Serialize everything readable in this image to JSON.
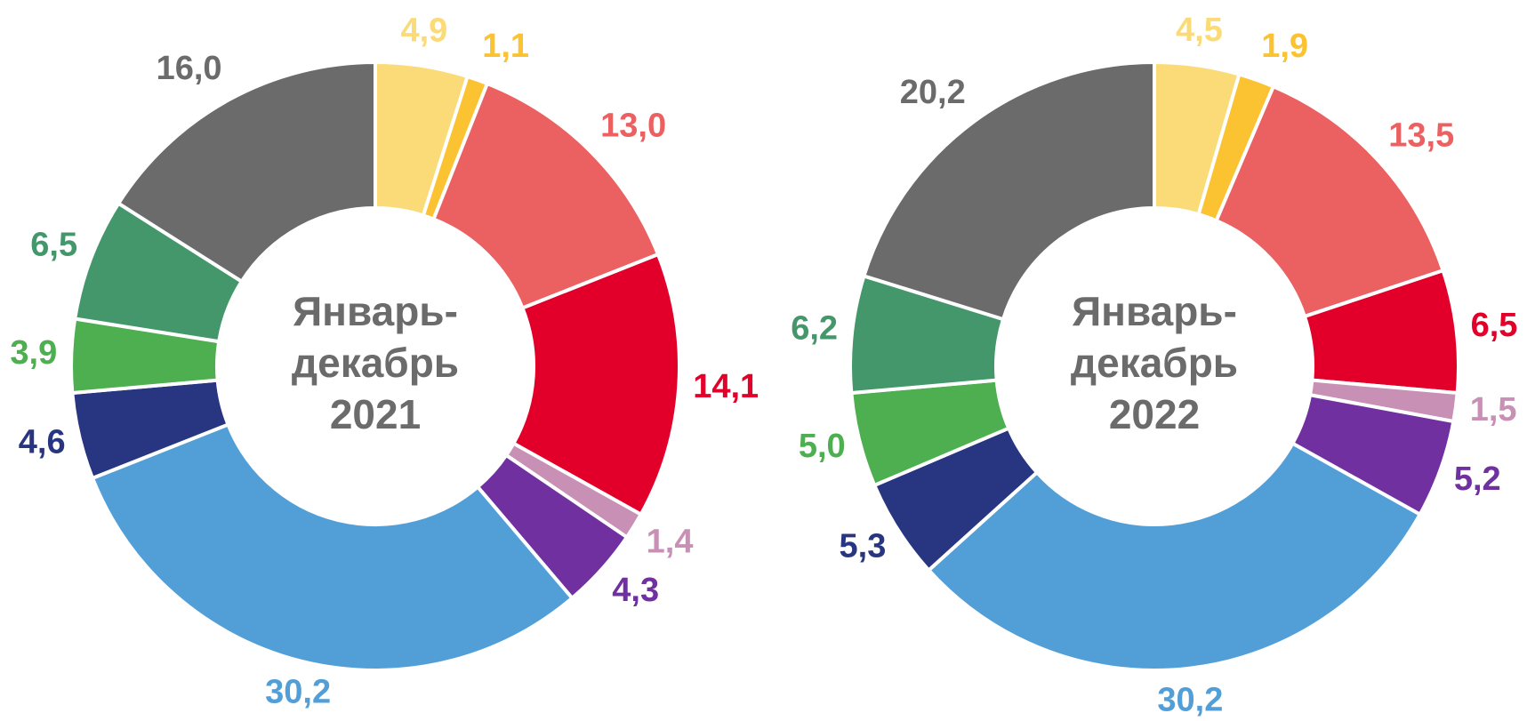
{
  "chart_data": [
    {
      "type": "donut",
      "title": [
        "Январь-",
        "декабрь",
        "2021"
      ],
      "values": [
        4.9,
        1.1,
        13.0,
        14.1,
        1.4,
        4.3,
        30.2,
        4.6,
        3.9,
        6.5,
        16.0
      ],
      "value_labels": [
        "4,9",
        "1,1",
        "13,0",
        "14,1",
        "1,4",
        "4,3",
        "30,2",
        "4,6",
        "3,9",
        "6,5",
        "16,0"
      ],
      "colors": [
        "#FBDB77",
        "#FBC231",
        "#EB6060",
        "#E2002A",
        "#C890B4",
        "#7030A0",
        "#529FD8",
        "#283580",
        "#4DAF50",
        "#44976A",
        "#6B6B6B"
      ]
    },
    {
      "type": "donut",
      "title": [
        "Январь-",
        "декабрь",
        "2022"
      ],
      "values": [
        4.5,
        1.9,
        13.5,
        6.5,
        1.5,
        5.2,
        30.2,
        5.3,
        5.0,
        6.2,
        20.2
      ],
      "value_labels": [
        "4,5",
        "1,9",
        "13,5",
        "6,5",
        "1,5",
        "5,2",
        "30,2",
        "5,3",
        "5,0",
        "6,2",
        "20,2"
      ],
      "colors": [
        "#FBDB77",
        "#FBC231",
        "#EB6060",
        "#E2002A",
        "#C890B4",
        "#7030A0",
        "#529FD8",
        "#283580",
        "#4DAF50",
        "#44976A",
        "#6B6B6B"
      ]
    }
  ]
}
